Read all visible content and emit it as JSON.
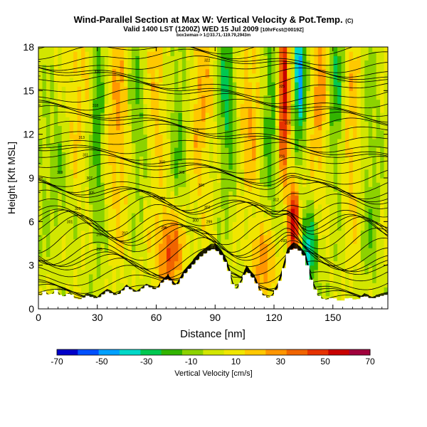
{
  "header": {
    "title": "Wind-Parallel Section at Max W: Vertical Velocity & Pot.Temp.",
    "title_mark": "(C)",
    "subtitle": "Valid 1400 LST (1200Z) WED 15 Jul 2009",
    "subtitle_small": "[10hrFcst@0019Z]",
    "subtitle2": "box1wmax-> 1@33.71,-119.79,2943m"
  },
  "chart_data": {
    "type": "heatmap",
    "xlabel": "Distance [nm]",
    "ylabel": "Height [Kft MSL]",
    "xlim": [
      0,
      178
    ],
    "ylim": [
      0,
      18
    ],
    "x_ticks": [
      0,
      30,
      60,
      90,
      120,
      150
    ],
    "y_ticks": [
      0,
      3,
      6,
      9,
      12,
      15,
      18
    ],
    "colorbar": {
      "label": "Vertical Velocity [cm/s]",
      "ticks": [
        -70,
        -50,
        -30,
        -10,
        10,
        30,
        50,
        70
      ],
      "colors": [
        "#0000c8",
        "#0050ff",
        "#00a0ff",
        "#00d8c8",
        "#00c850",
        "#32b400",
        "#8cd200",
        "#d2e600",
        "#f0e600",
        "#ffc800",
        "#ff9600",
        "#f06400",
        "#e63200",
        "#c80000",
        "#a0003c"
      ]
    },
    "terrain": [
      [
        0,
        0.8
      ],
      [
        3,
        1.2
      ],
      [
        6,
        0.9
      ],
      [
        9,
        1.3
      ],
      [
        12,
        0.8
      ],
      [
        16,
        1.1
      ],
      [
        20,
        0.6
      ],
      [
        25,
        0.9
      ],
      [
        30,
        0.7
      ],
      [
        35,
        1.2
      ],
      [
        40,
        0.9
      ],
      [
        45,
        1.5
      ],
      [
        50,
        1.1
      ],
      [
        55,
        1.6
      ],
      [
        60,
        1.3
      ],
      [
        63,
        1.8
      ],
      [
        66,
        2.1
      ],
      [
        70,
        1.5
      ],
      [
        74,
        2.3
      ],
      [
        78,
        2.9
      ],
      [
        82,
        3.5
      ],
      [
        86,
        3.9
      ],
      [
        88,
        4.1
      ],
      [
        90,
        4.1
      ],
      [
        93,
        3.7
      ],
      [
        96,
        3.0
      ],
      [
        98,
        2.2
      ],
      [
        100,
        1.2
      ],
      [
        103,
        1.8
      ],
      [
        106,
        2.6
      ],
      [
        110,
        2.0
      ],
      [
        114,
        1.0
      ],
      [
        118,
        0.7
      ],
      [
        122,
        1.5
      ],
      [
        125,
        2.8
      ],
      [
        127,
        3.8
      ],
      [
        130,
        4.2
      ],
      [
        133,
        4.0
      ],
      [
        136,
        3.5
      ],
      [
        139,
        2.0
      ],
      [
        142,
        1.0
      ],
      [
        146,
        0.6
      ],
      [
        150,
        0.8
      ],
      [
        154,
        0.5
      ],
      [
        158,
        0.8
      ],
      [
        162,
        0.6
      ],
      [
        166,
        0.9
      ],
      [
        170,
        0.7
      ],
      [
        175,
        0.9
      ],
      [
        178,
        1.0
      ]
    ],
    "w_features": [
      {
        "x": 10,
        "z": 10,
        "w": -12,
        "sx": 8,
        "sz": 4
      },
      {
        "x": 20,
        "z": 14,
        "w": 18,
        "sx": 5,
        "sz": 5
      },
      {
        "x": 30,
        "z": 13,
        "w": -25,
        "sx": 3,
        "sz": 6
      },
      {
        "x": 41,
        "z": 13,
        "w": 22,
        "sx": 5,
        "sz": 6
      },
      {
        "x": 50,
        "z": 14,
        "w": -20,
        "sx": 4,
        "sz": 5
      },
      {
        "x": 60,
        "z": 15,
        "w": 18,
        "sx": 4,
        "sz": 5
      },
      {
        "x": 67,
        "z": 4,
        "w": 40,
        "sx": 5,
        "sz": 2
      },
      {
        "x": 72,
        "z": 13,
        "w": -18,
        "sx": 4,
        "sz": 5
      },
      {
        "x": 82,
        "z": 14,
        "w": 20,
        "sx": 5,
        "sz": 5
      },
      {
        "x": 96,
        "z": 15,
        "w": -28,
        "sx": 3,
        "sz": 5
      },
      {
        "x": 108,
        "z": 14,
        "w": 20,
        "sx": 4,
        "sz": 5
      },
      {
        "x": 118,
        "z": 14,
        "w": -22,
        "sx": 3,
        "sz": 6
      },
      {
        "x": 125,
        "z": 15,
        "w": 60,
        "sx": 2,
        "sz": 4
      },
      {
        "x": 130,
        "z": 6,
        "w": 55,
        "sx": 2,
        "sz": 2
      },
      {
        "x": 133,
        "z": 16,
        "w": -55,
        "sx": 2,
        "sz": 3
      },
      {
        "x": 138,
        "z": 4,
        "w": -35,
        "sx": 3,
        "sz": 2
      },
      {
        "x": 143,
        "z": 15,
        "w": 25,
        "sx": 3,
        "sz": 5
      },
      {
        "x": 152,
        "z": 15,
        "w": -25,
        "sx": 3,
        "sz": 5
      },
      {
        "x": 160,
        "z": 12,
        "w": 20,
        "sx": 4,
        "sz": 6
      },
      {
        "x": 168,
        "z": 10,
        "w": -15,
        "sx": 4,
        "sz": 6
      },
      {
        "x": 115,
        "z": 3,
        "w": 28,
        "sx": 5,
        "sz": 2
      }
    ],
    "contour_labels": [
      {
        "x": 30,
        "z": 16.3,
        "text": "320"
      },
      {
        "x": 29,
        "z": 14.0,
        "text": "318"
      },
      {
        "x": 80,
        "z": 12.3,
        "text": "315"
      },
      {
        "x": 22,
        "z": 11.8,
        "text": "313"
      },
      {
        "x": 24,
        "z": 10.6,
        "text": "311"
      },
      {
        "x": 63,
        "z": 10.1,
        "text": "310"
      },
      {
        "x": 11,
        "z": 9.4,
        "text": "309"
      },
      {
        "x": 73,
        "z": 9.4,
        "text": "308"
      },
      {
        "x": 26,
        "z": 9.0,
        "text": "307"
      },
      {
        "x": 83,
        "z": 8.5,
        "text": "306"
      },
      {
        "x": 27,
        "z": 8.0,
        "text": "305"
      },
      {
        "x": 63,
        "z": 7.6,
        "text": "304"
      },
      {
        "x": 20,
        "z": 6.9,
        "text": "303"
      },
      {
        "x": 86,
        "z": 7.0,
        "text": "302"
      },
      {
        "x": 16,
        "z": 6.0,
        "text": "301"
      },
      {
        "x": 80,
        "z": 6.1,
        "text": "300"
      },
      {
        "x": 87,
        "z": 6.0,
        "text": "299"
      },
      {
        "x": 31,
        "z": 5.1,
        "text": "298"
      },
      {
        "x": 44,
        "z": 5.2,
        "text": "297"
      },
      {
        "x": 64,
        "z": 5.6,
        "text": "296"
      },
      {
        "x": 31,
        "z": 4.1,
        "text": "295"
      },
      {
        "x": 135,
        "z": 5.5,
        "text": "294"
      },
      {
        "x": 125,
        "z": 4.7,
        "text": "293"
      },
      {
        "x": 11,
        "z": 1.4,
        "text": "292"
      },
      {
        "x": 121,
        "z": 7.5,
        "text": "312"
      },
      {
        "x": 124,
        "z": 10.5,
        "text": "316"
      },
      {
        "x": 127,
        "z": 12.8,
        "text": "319"
      },
      {
        "x": 86,
        "z": 17.1,
        "text": "322"
      },
      {
        "x": 124,
        "z": 15.3,
        "text": "325"
      }
    ]
  }
}
